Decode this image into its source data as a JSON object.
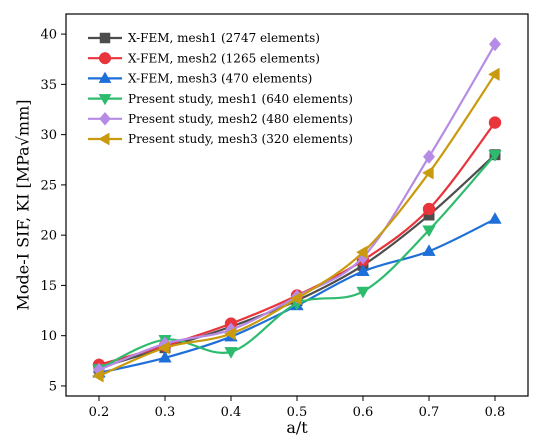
{
  "chart_data": {
    "type": "line",
    "xlabel": "a/t",
    "ylabel": "Mode-I SIF, KI [MPa√mm]",
    "xlim": [
      0.15,
      0.85
    ],
    "ylim": [
      4,
      42
    ],
    "xticks": [
      0.2,
      0.3,
      0.4,
      0.5,
      0.6,
      0.7,
      0.8
    ],
    "xtick_labels": [
      "0.2",
      "0.3",
      "0.4",
      "0.5",
      "0.6",
      "0.7",
      "0.8"
    ],
    "yticks": [
      5,
      10,
      15,
      20,
      25,
      30,
      35,
      40
    ],
    "ytick_labels": [
      "5",
      "10",
      "15",
      "20",
      "25",
      "30",
      "35",
      "40"
    ],
    "legend_position": "top-left",
    "x": [
      0.2,
      0.3,
      0.4,
      0.5,
      0.6,
      0.7,
      0.8
    ],
    "series": [
      {
        "name": "X-FEM, mesh1 (2747 elements)",
        "color": "#4d4d4d",
        "marker": "square",
        "values": [
          6.8,
          8.8,
          10.9,
          13.5,
          17.0,
          22.0,
          28.0
        ]
      },
      {
        "name": "X-FEM, mesh2 (1265 elements)",
        "color": "#e8343a",
        "marker": "circle",
        "values": [
          7.1,
          9.0,
          11.2,
          14.0,
          17.5,
          22.6,
          31.2
        ]
      },
      {
        "name": "X-FEM, mesh3 (470 elements)",
        "color": "#1f6fd8",
        "marker": "triangle-up",
        "values": [
          6.3,
          7.8,
          9.9,
          13.0,
          16.4,
          18.4,
          21.6
        ]
      },
      {
        "name": "Present study, mesh1 (640 elements)",
        "color": "#2dbb6e",
        "marker": "triangle-down",
        "values": [
          6.7,
          9.6,
          8.4,
          13.2,
          14.4,
          20.5,
          28.0
        ]
      },
      {
        "name": "Present study, mesh2 (480 elements)",
        "color": "#b68be6",
        "marker": "diamond",
        "values": [
          6.6,
          9.2,
          10.6,
          13.9,
          17.8,
          27.8,
          39.0
        ]
      },
      {
        "name": "Present study, mesh3 (320 elements)",
        "color": "#c99a0e",
        "marker": "triangle-left",
        "values": [
          6.0,
          8.8,
          10.2,
          13.7,
          18.3,
          26.2,
          36.0
        ]
      }
    ]
  }
}
